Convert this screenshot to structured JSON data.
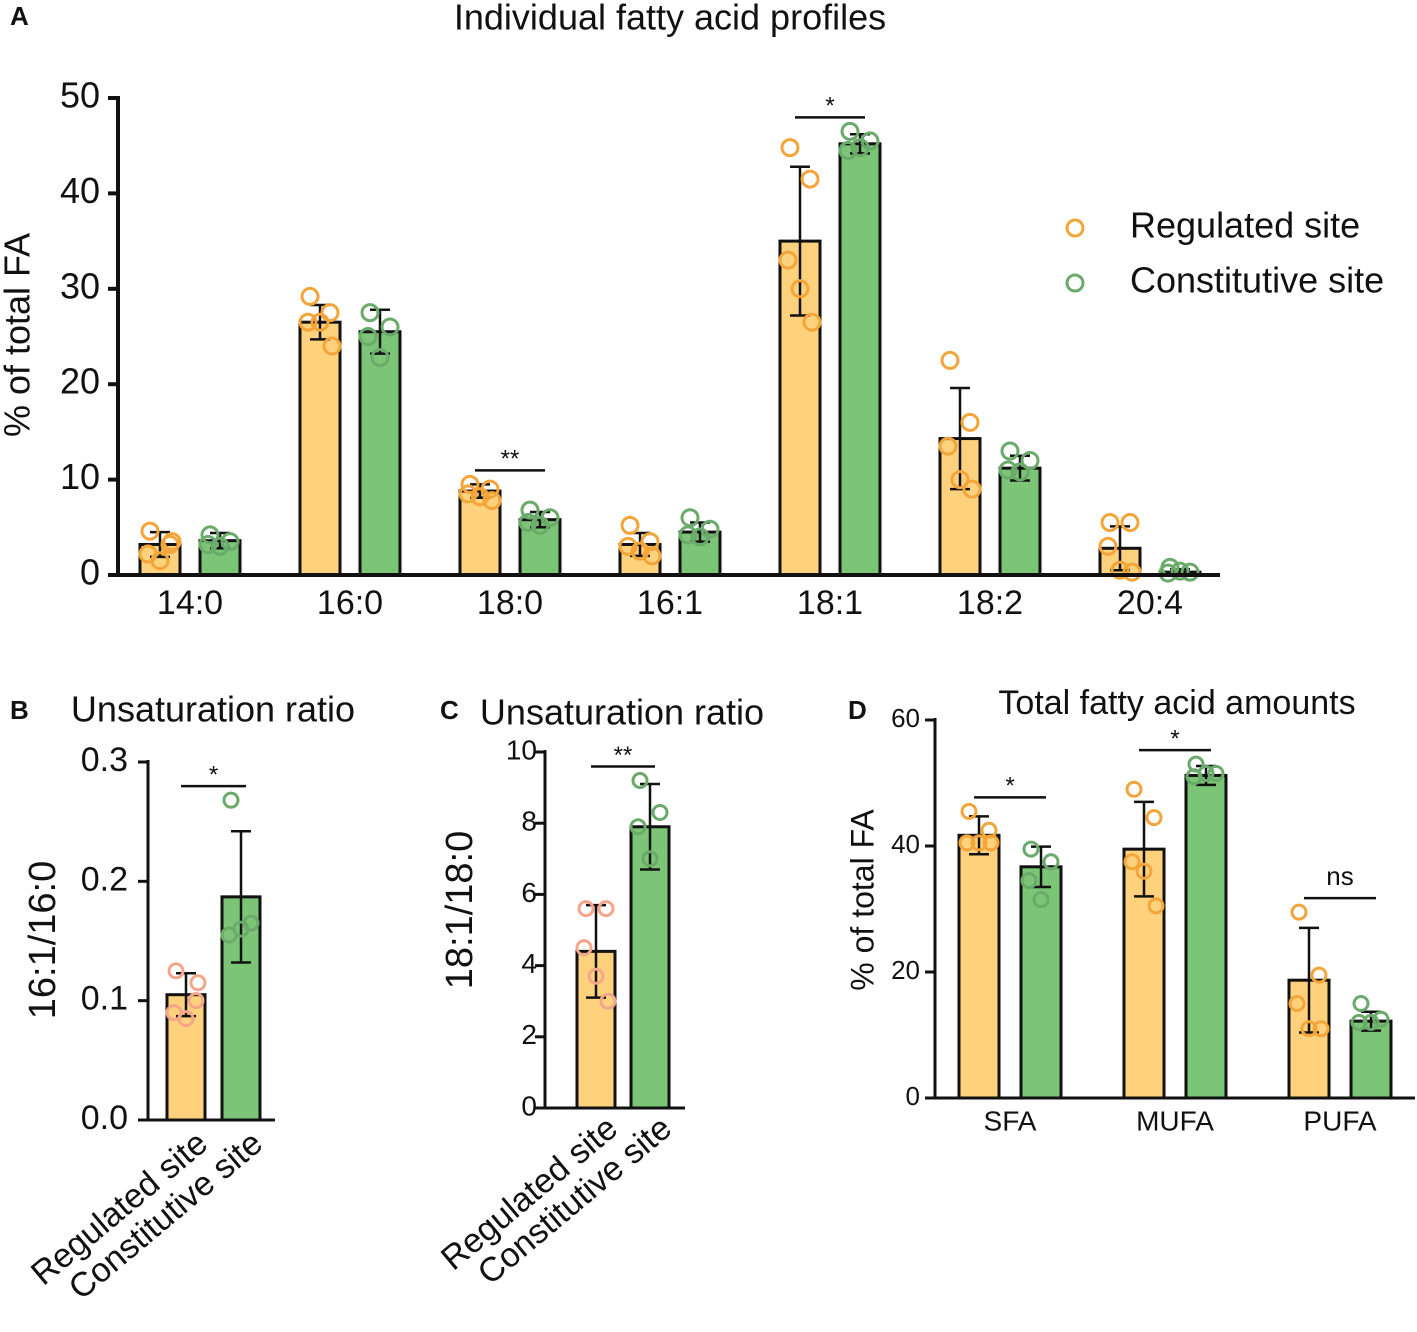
{
  "chart_data": [
    {
      "type": "bar",
      "panel": "A",
      "title": "Individual fatty acid profiles",
      "ylabel": "% of total FA",
      "categories": [
        "14:0",
        "16:0",
        "18:0",
        "16:1",
        "18:1",
        "18:2",
        "20:4"
      ],
      "series": [
        {
          "name": "Regulated site",
          "color": "#fed27c",
          "point_color": "#f4a53a",
          "values": [
            3.2,
            26.5,
            8.8,
            3.2,
            35,
            14.3,
            2.8
          ],
          "errors": [
            1.3,
            1.8,
            0.7,
            1.2,
            7.8,
            5.3,
            2.3
          ],
          "points": [
            [
              4.6,
              3.2,
              2.2,
              1.5,
              3.5
            ],
            [
              29.2,
              27.5,
              26.5,
              26.5,
              24
            ],
            [
              9.5,
              9,
              8.5,
              8.2,
              7.8
            ],
            [
              5.2,
              3.5,
              3,
              2.5,
              2
            ],
            [
              44.8,
              41.5,
              33,
              30,
              26.5
            ],
            [
              22.5,
              16,
              13.5,
              10,
              9
            ],
            [
              5.5,
              5.5,
              3,
              0.5,
              0.3
            ]
          ]
        },
        {
          "name": "Constitutive site",
          "color": "#7cc576",
          "point_color": "#6aaa6a",
          "values": [
            3.6,
            25.5,
            5.8,
            4.5,
            45.2,
            11.2,
            0.3
          ],
          "errors": [
            0.8,
            2.3,
            0.8,
            1.0,
            1.0,
            1.3,
            0.3
          ],
          "points": [
            [
              4.2,
              3.5,
              3.2,
              3.0
            ],
            [
              27.5,
              26,
              25,
              22.8
            ],
            [
              6.8,
              6,
              5.5,
              5.2
            ],
            [
              6,
              4.8,
              4.2,
              4
            ],
            [
              46.5,
              45.5,
              44.5,
              44.8
            ],
            [
              13,
              12,
              11,
              10.8
            ],
            [
              0.8,
              0.3,
              0.2,
              0.4
            ]
          ]
        }
      ],
      "significance": [
        {
          "between": "18:0",
          "label": "**"
        },
        {
          "between": "18:1",
          "label": "*"
        }
      ],
      "ylim": [
        0,
        50
      ],
      "yticks": [
        0,
        10,
        20,
        30,
        40,
        50
      ],
      "legend": "upper right"
    },
    {
      "type": "bar",
      "panel": "B",
      "title": "Unsaturation ratio",
      "ylabel": "16:1/16:0",
      "categories": [
        "Regulated site",
        "Constitutive site"
      ],
      "values": [
        0.105,
        0.187
      ],
      "errors": [
        0.018,
        0.055
      ],
      "points": [
        [
          0.125,
          0.1,
          0.09,
          0.085,
          0.115
        ],
        [
          0.268,
          0.165,
          0.155,
          0.16
        ]
      ],
      "colors": [
        "#fed27c",
        "#7cc576"
      ],
      "point_colors": [
        "#f4a68a",
        "#6aaa6a"
      ],
      "significance": [
        {
          "label": "*"
        }
      ],
      "ylim": [
        0,
        0.3
      ],
      "yticks": [
        {
          "value": 0,
          "label": "0.0"
        },
        0.1,
        0.2,
        0.3
      ]
    },
    {
      "type": "bar",
      "panel": "C",
      "title": "Unsaturation ratio",
      "ylabel": "18:1/18:0",
      "categories": [
        "Regulated site",
        "Constitutive site"
      ],
      "values": [
        4.4,
        7.9
      ],
      "errors": [
        1.3,
        1.2
      ],
      "points": [
        [
          5.6,
          5.6,
          4.5,
          3.7,
          3.0
        ],
        [
          9.2,
          8.3,
          7.9,
          7.0
        ]
      ],
      "colors": [
        "#fed27c",
        "#7cc576"
      ],
      "point_colors": [
        "#f4a68a",
        "#6aaa6a"
      ],
      "significance": [
        {
          "label": "**"
        }
      ],
      "ylim": [
        0,
        10
      ],
      "yticks": [
        0,
        2,
        4,
        6,
        8,
        10
      ]
    },
    {
      "type": "bar",
      "panel": "D",
      "title": "Total fatty acid amounts",
      "ylabel": "% of total FA",
      "categories": [
        "SFA",
        "MUFA",
        "PUFA"
      ],
      "series": [
        {
          "name": "Regulated site",
          "color": "#fed27c",
          "point_color": "#f4a53a",
          "values": [
            41.7,
            39.5,
            18.7
          ],
          "errors": [
            3,
            7.5,
            8.3
          ],
          "points": [
            [
              45.5,
              42.5,
              40.5,
              40.5,
              40.5
            ],
            [
              49,
              44.5,
              37.5,
              36,
              30.5
            ],
            [
              29.5,
              19.5,
              15,
              11,
              11
            ]
          ]
        },
        {
          "name": "Constitutive site",
          "color": "#7cc576",
          "point_color": "#6aaa6a",
          "values": [
            36.7,
            51.2,
            12.2
          ],
          "errors": [
            3.2,
            1.5,
            1.5
          ],
          "points": [
            [
              39.5,
              37.5,
              34.5,
              31.5
            ],
            [
              53,
              51.5,
              51,
              51.5
            ],
            [
              15,
              12.5,
              12,
              12
            ]
          ]
        }
      ],
      "significance": [
        {
          "between": "SFA",
          "label": "*"
        },
        {
          "between": "MUFA",
          "label": "*"
        },
        {
          "between": "PUFA",
          "label": "ns"
        }
      ],
      "ylim": [
        0,
        60
      ],
      "yticks": [
        0,
        20,
        40,
        60
      ]
    }
  ]
}
